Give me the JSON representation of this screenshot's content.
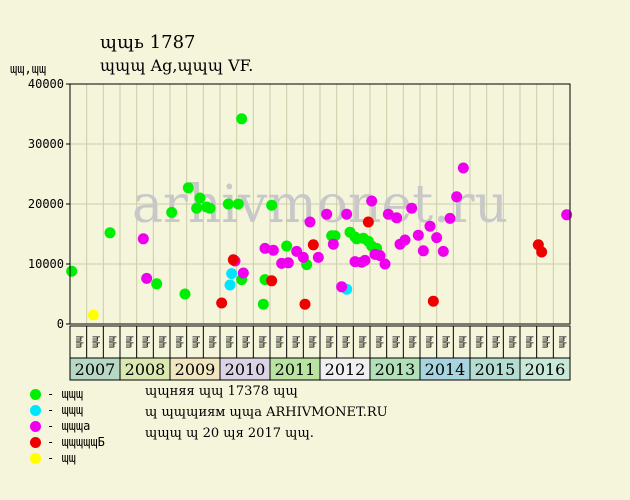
{
  "header": {
    "line1": "ɰɰь 1787",
    "line2": "ɰɰɰ Ag,ɰɰɰ VF.",
    "ylabel": "ɰɰ,ɰɰ"
  },
  "chart_data": {
    "type": "scatter",
    "ylim": [
      0,
      40000
    ],
    "yticks": [
      0,
      10000,
      20000,
      30000,
      40000
    ],
    "years": [
      "2007",
      "2008",
      "2009",
      "2010",
      "2011",
      "2012",
      "2013",
      "2014",
      "2015",
      "2016"
    ],
    "year_colors": [
      "#b7d8c5",
      "#dbe8b0",
      "#f0e6c0",
      "#ddd3e6",
      "#b8e3a0",
      "#f0f0f0",
      "#b2e0b8",
      "#a8d4e0",
      "#b4dcd0",
      "#c8e8d8"
    ],
    "month_labels": [
      "ɰɰ",
      "ɰɰ",
      "ɰɰ",
      "ɰɰ",
      "ɰɰ",
      "ɰɰ",
      "ɰɰ",
      "ɰɰ",
      "ɰɰ",
      "ɰɰ",
      "ɰɰ",
      "ɰɰ",
      "ɰɰ",
      "ɰɰ",
      "ɰɰ",
      "ɰɰ",
      "ɰɰ",
      "ɰɰ",
      "ɰɰ",
      "ɰɰ",
      "ɰɰ",
      "ɰɰ",
      "ɰɰ",
      "ɰɰ",
      "ɰɰ",
      "ɰɰ",
      "ɰɰ",
      "ɰɰ",
      "ɰɰ",
      "ɰɰ"
    ],
    "x_range": [
      0,
      30
    ],
    "series": [
      {
        "name": "ɰɰɰ",
        "color": "#00ee00",
        "points": [
          [
            0.1,
            8800
          ],
          [
            2.4,
            15200
          ],
          [
            5.2,
            6700
          ],
          [
            6.1,
            18600
          ],
          [
            6.9,
            5000
          ],
          [
            7.1,
            22700
          ],
          [
            7.6,
            19300
          ],
          [
            7.8,
            21000
          ],
          [
            8.2,
            19500
          ],
          [
            8.4,
            19300
          ],
          [
            9.5,
            20000
          ],
          [
            10.1,
            20000
          ],
          [
            10.3,
            34200
          ],
          [
            10.3,
            7400
          ],
          [
            11.6,
            3300
          ],
          [
            11.7,
            7400
          ],
          [
            12.1,
            19800
          ],
          [
            13.0,
            13000
          ],
          [
            14.2,
            9900
          ],
          [
            15.7,
            14700
          ],
          [
            15.9,
            14700
          ],
          [
            16.8,
            15300
          ],
          [
            17.1,
            14500
          ],
          [
            17.2,
            14200
          ],
          [
            17.6,
            14300
          ],
          [
            17.9,
            13800
          ],
          [
            18.1,
            13000
          ],
          [
            18.4,
            12600
          ]
        ]
      },
      {
        "name": "ɰɰɰ",
        "color": "#00e5ff",
        "points": [
          [
            9.6,
            6500
          ],
          [
            9.7,
            8400
          ],
          [
            16.6,
            5800
          ]
        ]
      },
      {
        "name": "ɰɰɰa",
        "color": "#ee00ee",
        "points": [
          [
            4.4,
            14200
          ],
          [
            4.6,
            7600
          ],
          [
            9.9,
            10500
          ],
          [
            10.4,
            8500
          ],
          [
            11.7,
            12600
          ],
          [
            12.2,
            12300
          ],
          [
            12.7,
            10100
          ],
          [
            13.1,
            10200
          ],
          [
            13.6,
            12100
          ],
          [
            14.0,
            11100
          ],
          [
            14.4,
            17000
          ],
          [
            14.9,
            11100
          ],
          [
            15.4,
            18300
          ],
          [
            15.8,
            13300
          ],
          [
            16.3,
            6200
          ],
          [
            16.6,
            18300
          ],
          [
            17.1,
            10400
          ],
          [
            17.5,
            10300
          ],
          [
            17.7,
            10600
          ],
          [
            18.1,
            20500
          ],
          [
            18.3,
            11600
          ],
          [
            18.6,
            11400
          ],
          [
            18.9,
            10000
          ],
          [
            19.1,
            18300
          ],
          [
            19.6,
            17700
          ],
          [
            19.8,
            13300
          ],
          [
            20.1,
            14000
          ],
          [
            20.5,
            19300
          ],
          [
            20.9,
            14800
          ],
          [
            21.2,
            12200
          ],
          [
            21.6,
            16300
          ],
          [
            22.0,
            14400
          ],
          [
            22.4,
            12100
          ],
          [
            22.8,
            17600
          ],
          [
            23.2,
            21200
          ],
          [
            23.6,
            26000
          ],
          [
            29.8,
            18200
          ]
        ]
      },
      {
        "name": "ɰɰɰɰɰБ",
        "color": "#ee0000",
        "points": [
          [
            9.1,
            3500
          ],
          [
            9.8,
            10700
          ],
          [
            12.1,
            7200
          ],
          [
            14.1,
            3300
          ],
          [
            14.6,
            13200
          ],
          [
            17.9,
            17000
          ],
          [
            21.8,
            3800
          ],
          [
            28.1,
            13200
          ],
          [
            28.3,
            12000
          ]
        ]
      },
      {
        "name": "ɰɰ",
        "color": "#ffff00",
        "points": [
          [
            1.4,
            1500
          ]
        ]
      }
    ]
  },
  "notes": [
    "ɰɰняя ɰɰ 17378 ɰɰ",
    "ɰ ɰɰɰиям ɰɰa ARHIVMONET.RU",
    "ɰɰɰ ɰ 20 ɰя 2017 ɰɰ."
  ],
  "watermark": "arhivmonet.ru"
}
